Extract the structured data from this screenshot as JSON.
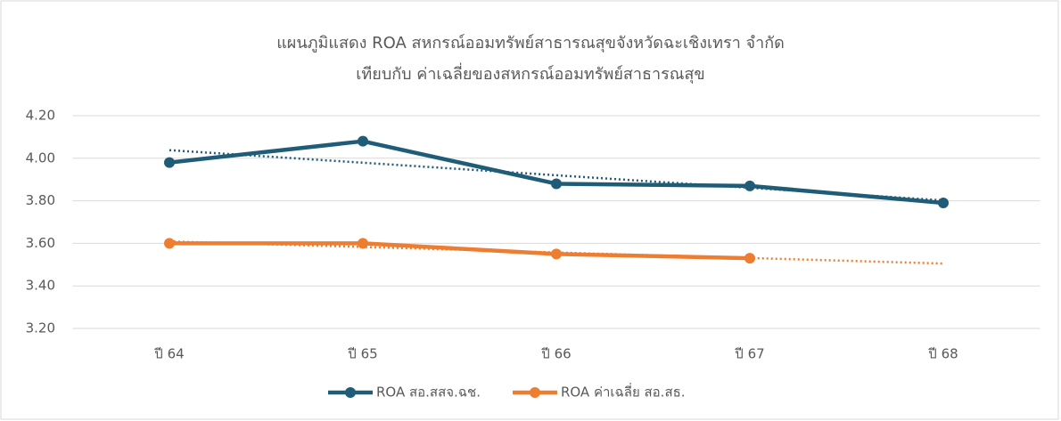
{
  "chart_data": {
    "type": "line",
    "title": [
      "แผนภูมิแสดง ROA สหกรณ์ออมทรัพย์สาธารณสุขจังหวัดฉะเชิงเทรา จำกัด",
      "เทียบกับ ค่าเฉลี่ยของสหกรณ์ออมทรัพย์สาธารณสุข"
    ],
    "categories": [
      "ปี 64",
      "ปี 65",
      "ปี 66",
      "ปี 67",
      "ปี 68"
    ],
    "series": [
      {
        "name": "ROA สอ.สสจ.ฉช.",
        "color": "#1f5c78",
        "values": [
          3.98,
          4.08,
          3.88,
          3.87,
          3.79
        ]
      },
      {
        "name": "ROA ค่าเฉลี่ย สอ.สธ.",
        "color": "#ed7d31",
        "values": [
          3.6,
          3.6,
          3.55,
          3.53,
          null
        ]
      }
    ],
    "ylim": [
      3.2,
      4.2
    ],
    "yticks": [
      {
        "value": 3.2,
        "label": "3.20"
      },
      {
        "value": 3.4,
        "label": "3.40"
      },
      {
        "value": 3.6,
        "label": "3.60"
      },
      {
        "value": 3.8,
        "label": "3.80"
      },
      {
        "value": 4.0,
        "label": "4.00"
      },
      {
        "value": 4.2,
        "label": "4.20"
      }
    ],
    "grid": true,
    "trendline": true,
    "legend": "bottom"
  }
}
